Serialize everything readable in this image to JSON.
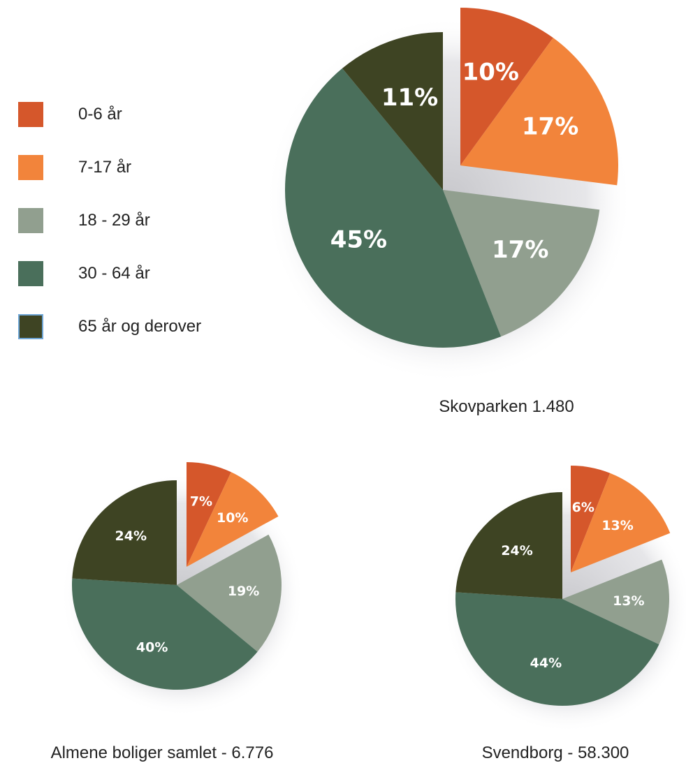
{
  "legend": {
    "items": [
      {
        "label": "0-6 år",
        "color": "#d5572b"
      },
      {
        "label": "7-17 år",
        "color": "#f2843b"
      },
      {
        "label": "18 - 29 år",
        "color": "#919f8f"
      },
      {
        "label": "30 - 64 år",
        "color": "#4a6f5b"
      },
      {
        "label": "65 år og derover",
        "color": "#3e4423"
      }
    ]
  },
  "chart_data": [
    {
      "type": "pie",
      "title": "Skovparken 1.480",
      "categories": [
        "0-6 år",
        "7-17 år",
        "18 - 29 år",
        "30 - 64 år",
        "65 år og derover"
      ],
      "values": [
        10,
        17,
        17,
        45,
        11
      ],
      "labels": [
        "10%",
        "17%",
        "17%",
        "45%",
        "11%"
      ],
      "exploded": [
        "0-6 år",
        "7-17 år"
      ]
    },
    {
      "type": "pie",
      "title": "Almene boliger samlet - 6.776",
      "categories": [
        "0-6 år",
        "7-17 år",
        "18 - 29 år",
        "30 - 64 år",
        "65 år og derover"
      ],
      "values": [
        7,
        10,
        19,
        40,
        24
      ],
      "labels": [
        "7%",
        "10%",
        "19%",
        "40%",
        "24%"
      ],
      "exploded": [
        "0-6 år",
        "7-17 år"
      ]
    },
    {
      "type": "pie",
      "title": "Svendborg - 58.300",
      "categories": [
        "0-6 år",
        "7-17 år",
        "18 - 29 år",
        "30 - 64 år",
        "65 år og derover"
      ],
      "values": [
        6,
        13,
        13,
        44,
        24
      ],
      "labels": [
        "6%",
        "13%",
        "13%",
        "44%",
        "24%"
      ],
      "exploded": [
        "0-6 år",
        "7-17 år"
      ]
    }
  ]
}
